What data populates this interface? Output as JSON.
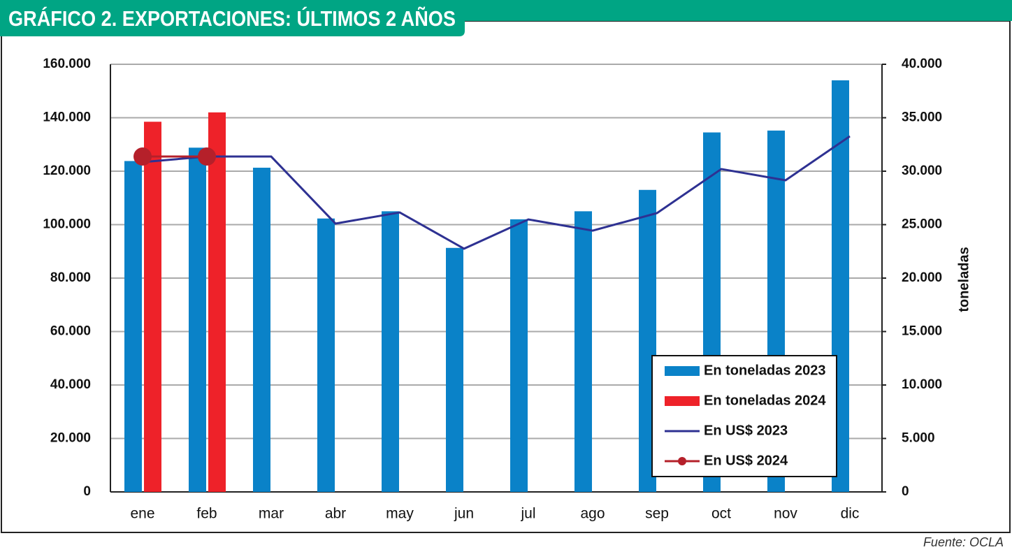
{
  "chart_data": {
    "type": "bar_line",
    "title": "GRÁFICO 2. EXPORTACIONES: ÚLTIMOS 2 AÑOS",
    "y2label": "toneladas",
    "source": "Fuente: OCLA",
    "categories": [
      "ene",
      "feb",
      "mar",
      "abr",
      "may",
      "jun",
      "jul",
      "ago",
      "sep",
      "oct",
      "nov",
      "dic"
    ],
    "series": [
      {
        "name": "En toneladas 2023",
        "kind": "bar",
        "color": "#0a82c8",
        "values": [
          123800,
          128800,
          121300,
          102300,
          105000,
          91300,
          102000,
          105000,
          113000,
          134500,
          135200,
          154000
        ]
      },
      {
        "name": "En toneladas 2024",
        "kind": "bar",
        "color": "#ee2229",
        "values": [
          138500,
          142000,
          null,
          null,
          null,
          null,
          null,
          null,
          null,
          null,
          null,
          null
        ]
      },
      {
        "name": "En US$ 2023",
        "kind": "line",
        "axis": "y2",
        "color": "#2e3192",
        "values": [
          30850,
          31370,
          31370,
          25100,
          26140,
          22750,
          25490,
          24440,
          26080,
          30200,
          29150,
          33270
        ]
      },
      {
        "name": "En US$ 2024",
        "kind": "line",
        "axis": "y2",
        "marker": true,
        "color": "#b5202a",
        "values": [
          31370,
          31370,
          null,
          null,
          null,
          null,
          null,
          null,
          null,
          null,
          null,
          null
        ]
      }
    ],
    "ylim": [
      0,
      160000
    ],
    "yticks": [
      0,
      {
        "value": 20000,
        "label": "20.000"
      },
      {
        "value": 40000,
        "label": "40.000"
      },
      {
        "value": 60000,
        "label": "60.000"
      },
      {
        "value": 80000,
        "label": "80.000"
      },
      {
        "value": 100000,
        "label": "100.000"
      },
      {
        "value": 120000,
        "label": "120.000"
      },
      {
        "value": 140000,
        "label": "140.000"
      },
      {
        "value": 160000,
        "label": "160.000"
      }
    ],
    "y2lim": [
      0,
      40000
    ],
    "y2ticks": [
      0,
      {
        "value": 5000,
        "label": "5.000"
      },
      {
        "value": 10000,
        "label": "10.000"
      },
      {
        "value": 15000,
        "label": "15.000"
      },
      {
        "value": 20000,
        "label": "20.000"
      },
      {
        "value": 25000,
        "label": "25.000"
      },
      {
        "value": 30000,
        "label": "30.000"
      },
      {
        "value": 35000,
        "label": "35.000"
      },
      {
        "value": 40000,
        "label": "40.000"
      }
    ],
    "grid": true,
    "legend": "lower right"
  }
}
